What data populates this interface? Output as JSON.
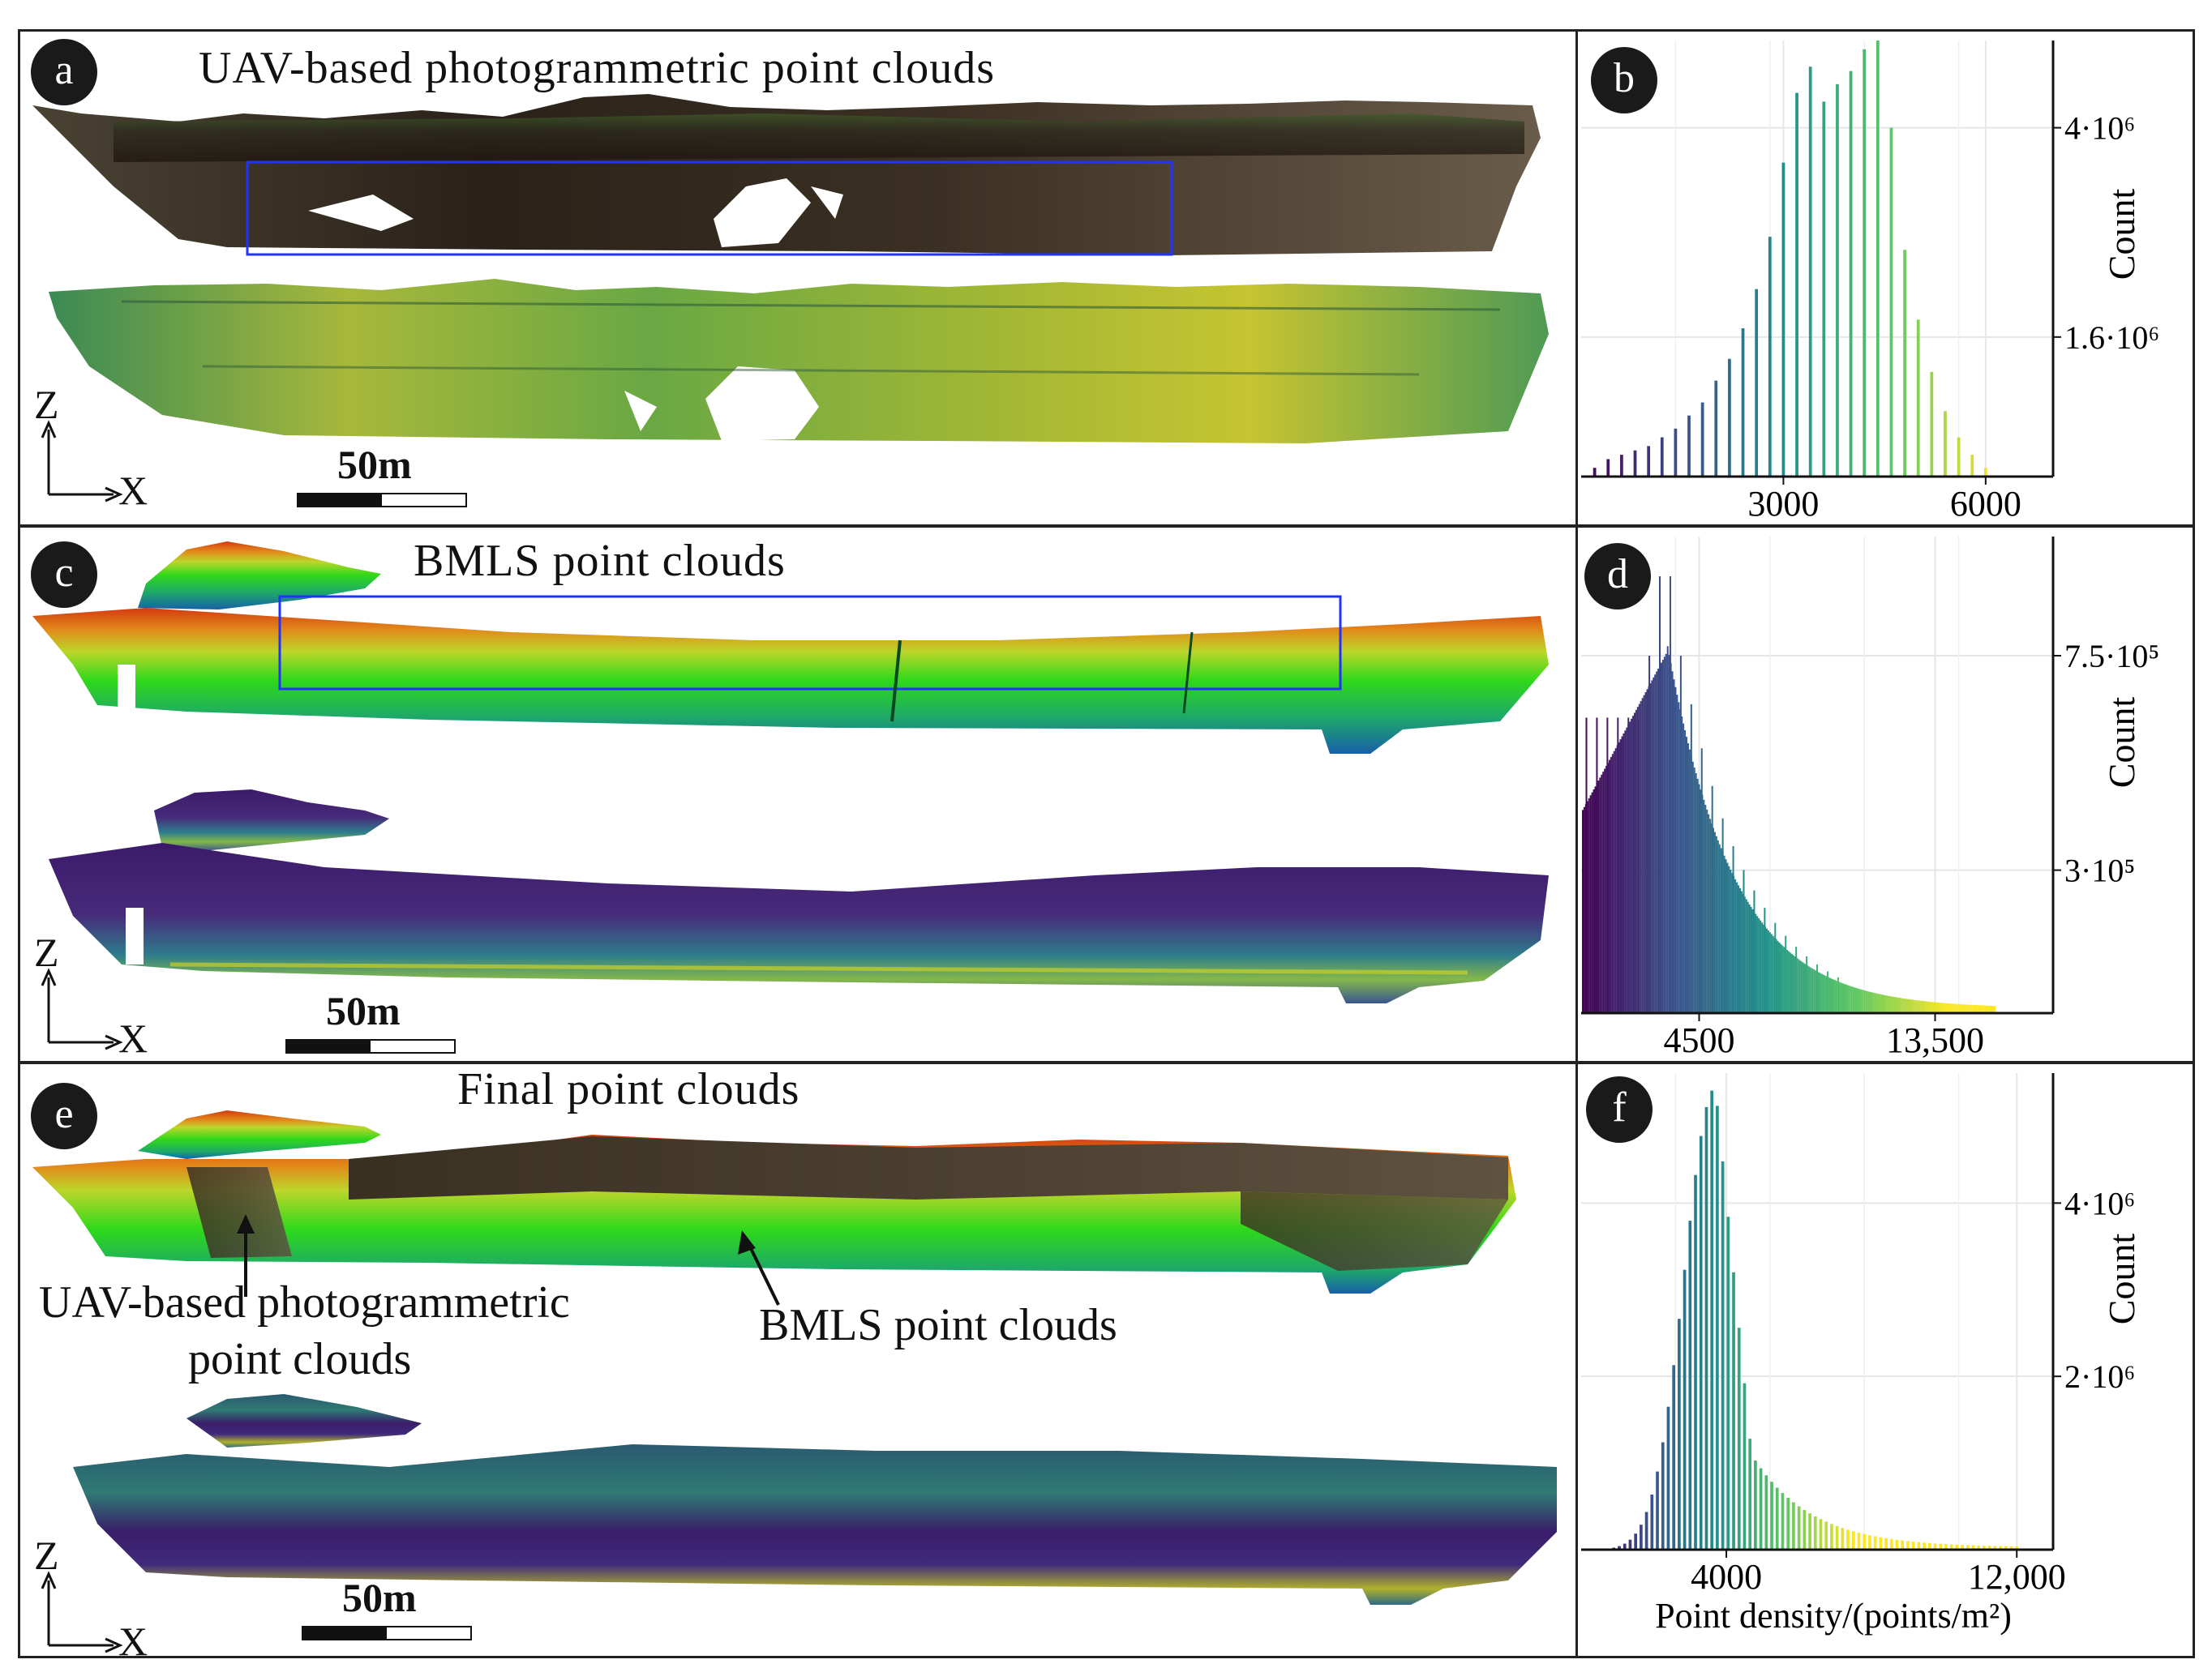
{
  "panels": {
    "a": {
      "label": "a",
      "title": "UAV-based photogrammetric point clouds",
      "scale_label": "50m",
      "axis_z": "Z",
      "axis_x": "X"
    },
    "c": {
      "label": "c",
      "title": "BMLS point clouds",
      "scale_label": "50m",
      "axis_z": "Z",
      "axis_x": "X"
    },
    "e": {
      "label": "e",
      "title": "Final point clouds",
      "scale_label": "50m",
      "axis_z": "Z",
      "axis_x": "X",
      "annotation_uav_line1": "UAV-based photogrammetric",
      "annotation_uav_line2": "point clouds",
      "annotation_bmls": "BMLS point clouds"
    }
  },
  "chart_data": [
    {
      "panel": "b",
      "type": "bar",
      "xticks": [
        {
          "value": 3000,
          "label": "3000"
        },
        {
          "value": 6000,
          "label": "6000"
        }
      ],
      "yticks": [
        {
          "value": 4000000,
          "label": "4·10⁶"
        },
        {
          "value": 1600000,
          "label": "1.6·10⁶"
        }
      ],
      "ylabel": "Count",
      "xlabel": "",
      "xlim": [
        0,
        7000
      ],
      "ylim": [
        0,
        5000000
      ],
      "grid": true,
      "colormap": "viridis",
      "bin_width": 100,
      "values": [
        {
          "x": 200,
          "y": 0.02
        },
        {
          "x": 400,
          "y": 0.04
        },
        {
          "x": 600,
          "y": 0.05
        },
        {
          "x": 800,
          "y": 0.06
        },
        {
          "x": 1000,
          "y": 0.07
        },
        {
          "x": 1200,
          "y": 0.09
        },
        {
          "x": 1400,
          "y": 0.11
        },
        {
          "x": 1600,
          "y": 0.14
        },
        {
          "x": 1800,
          "y": 0.17
        },
        {
          "x": 2000,
          "y": 0.22
        },
        {
          "x": 2200,
          "y": 0.27
        },
        {
          "x": 2400,
          "y": 0.34
        },
        {
          "x": 2600,
          "y": 0.43
        },
        {
          "x": 2800,
          "y": 0.55
        },
        {
          "x": 3000,
          "y": 0.72
        },
        {
          "x": 3200,
          "y": 0.88
        },
        {
          "x": 3400,
          "y": 0.94
        },
        {
          "x": 3600,
          "y": 0.86
        },
        {
          "x": 3800,
          "y": 0.9
        },
        {
          "x": 4000,
          "y": 0.93
        },
        {
          "x": 4200,
          "y": 0.98
        },
        {
          "x": 4400,
          "y": 1.0
        },
        {
          "x": 4600,
          "y": 0.8
        },
        {
          "x": 4800,
          "y": 0.52
        },
        {
          "x": 5000,
          "y": 0.36
        },
        {
          "x": 5200,
          "y": 0.24
        },
        {
          "x": 5400,
          "y": 0.15
        },
        {
          "x": 5600,
          "y": 0.09
        },
        {
          "x": 5800,
          "y": 0.05
        },
        {
          "x": 6000,
          "y": 0.02
        }
      ]
    },
    {
      "panel": "d",
      "type": "bar",
      "xticks": [
        {
          "value": 4500,
          "label": "4500"
        },
        {
          "value": 13500,
          "label": "13,500"
        }
      ],
      "yticks": [
        {
          "value": 750000,
          "label": "7.5·10⁵"
        },
        {
          "value": 300000,
          "label": "3·10⁵"
        }
      ],
      "ylabel": "Count",
      "xlabel": "",
      "xlim": [
        0,
        18000
      ],
      "ylim": [
        0,
        1000000
      ],
      "grid": true,
      "colormap": "viridis"
    },
    {
      "panel": "f",
      "type": "bar",
      "xticks": [
        {
          "value": 4000,
          "label": "4000"
        },
        {
          "value": 12000,
          "label": "12,000"
        }
      ],
      "yticks": [
        {
          "value": 4000000,
          "label": "4·10⁶"
        },
        {
          "value": 2000000,
          "label": "2·10⁶"
        }
      ],
      "ylabel": "Count",
      "xlabel": "Point density/(points/m²)",
      "xlim": [
        0,
        13000
      ],
      "ylim": [
        0,
        5500000
      ],
      "grid": true,
      "colormap": "viridis"
    }
  ]
}
